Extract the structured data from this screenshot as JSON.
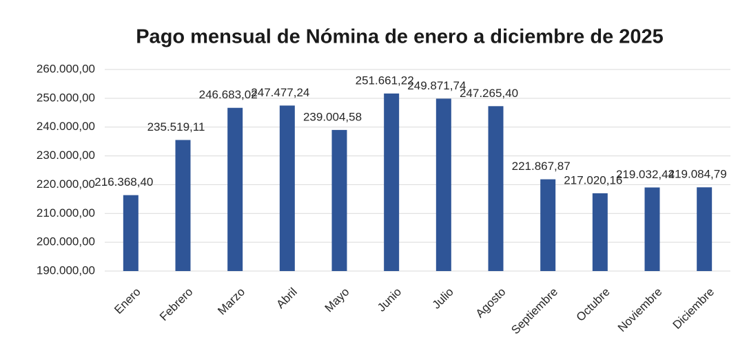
{
  "chart_data": {
    "type": "bar",
    "title": "Pago mensual de Nómina de enero a diciembre de 2025",
    "categories": [
      "Enero",
      "Febrero",
      "Marzo",
      "Abril",
      "Mayo",
      "Junio",
      "Julio",
      "Agosto",
      "Septiembre",
      "Octubre",
      "Noviembre",
      "Diciembre"
    ],
    "values": [
      216368.4,
      235519.11,
      246683.02,
      247477.24,
      239004.58,
      251661.22,
      249871.74,
      247265.4,
      221867.87,
      217020.16,
      219032.44,
      219084.79
    ],
    "value_labels": [
      "216.368,40",
      "235.519,11",
      "246.683,02",
      "247.477,24",
      "239.004,58",
      "251.661,22",
      "249.871,74",
      "247.265,40",
      "221.867,87",
      "217.020,16",
      "219.032,44",
      "219.084,79"
    ],
    "color": "#2f5597",
    "ylim": [
      190000,
      260000
    ],
    "yticks": [
      {
        "value": 190000,
        "label": "190.000,00"
      },
      {
        "value": 200000,
        "label": "200.000,00"
      },
      {
        "value": 210000,
        "label": "210.000,00"
      },
      {
        "value": 220000,
        "label": "220.000,00"
      },
      {
        "value": 230000,
        "label": "230.000,00"
      },
      {
        "value": 240000,
        "label": "240.000,00"
      },
      {
        "value": 250000,
        "label": "250.000,00"
      },
      {
        "value": 260000,
        "label": "260.000,00"
      }
    ],
    "grid": true
  }
}
